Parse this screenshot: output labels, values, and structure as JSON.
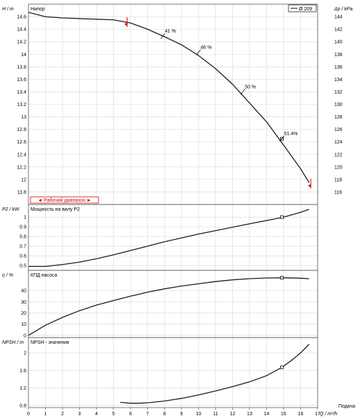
{
  "chart_data": [
    {
      "type": "line",
      "panel": "head",
      "title": "Напор",
      "ylabel": "H / m",
      "ylabel_right": "Δp / kPa",
      "legend": "Ø 209",
      "legend_position": "top-right",
      "grid": true,
      "xlim": [
        0,
        17
      ],
      "ylim": [
        11.6,
        14.8
      ],
      "yticks": [
        11.8,
        12,
        12.2,
        12.4,
        12.6,
        12.8,
        13,
        13.2,
        13.4,
        13.6,
        13.8,
        14,
        14.2,
        14.4,
        14.6
      ],
      "yticks_right": [
        116,
        118,
        120,
        122,
        124,
        126,
        128,
        130,
        132,
        134,
        136,
        138,
        140,
        142,
        144
      ],
      "series": [
        {
          "name": "Ø 209",
          "x": [
            0,
            1,
            2,
            3,
            4,
            5,
            6,
            7,
            8,
            9,
            10,
            11,
            12,
            13,
            14,
            15,
            15.5,
            16,
            16.5
          ],
          "y": [
            14.67,
            14.6,
            14.58,
            14.57,
            14.56,
            14.55,
            14.5,
            14.4,
            14.28,
            14.15,
            13.98,
            13.77,
            13.52,
            13.22,
            12.92,
            12.55,
            12.36,
            12.17,
            11.95
          ]
        }
      ],
      "efficiency_marks": [
        {
          "label": "41 %",
          "x": 7.9,
          "y": 14.29
        },
        {
          "label": "46 %",
          "x": 10.0,
          "y": 14.03
        },
        {
          "label": "50 %",
          "x": 12.6,
          "y": 13.4
        },
        {
          "label": "51.4%",
          "x": 14.9,
          "y": 12.65
        }
      ],
      "operating_point": {
        "x": 14.9,
        "y": 12.65
      },
      "range_label": "◄ Рабочий диапазон ►",
      "range_limits": [
        {
          "x": 5.8,
          "y": 14.48
        },
        {
          "x": 16.6,
          "y": 11.9
        }
      ]
    },
    {
      "type": "line",
      "panel": "power",
      "title": "Мощность на валу P2",
      "ylabel": "P2 / kW",
      "grid": true,
      "xlim": [
        0,
        17
      ],
      "ylim": [
        0.45,
        1.13
      ],
      "yticks": [
        0.5,
        0.6,
        0.7,
        0.8,
        0.9,
        1
      ],
      "series": [
        {
          "name": "",
          "x": [
            0,
            1,
            2,
            3,
            4,
            5,
            6,
            7,
            8,
            9,
            10,
            11,
            12,
            13,
            14,
            15,
            16,
            16.5
          ],
          "y": [
            0.49,
            0.49,
            0.51,
            0.535,
            0.57,
            0.61,
            0.655,
            0.7,
            0.745,
            0.785,
            0.825,
            0.86,
            0.895,
            0.93,
            0.965,
            1.0,
            1.05,
            1.08
          ]
        }
      ],
      "operating_point": {
        "x": 14.9,
        "y": 1.0
      }
    },
    {
      "type": "line",
      "panel": "efficiency",
      "title": "КПД насоса",
      "ylabel": "η / %",
      "grid": true,
      "xlim": [
        0,
        17
      ],
      "ylim": [
        -2,
        58
      ],
      "yticks": [
        0,
        10,
        20,
        30,
        40
      ],
      "series": [
        {
          "name": "",
          "x": [
            0,
            1,
            2,
            3,
            4,
            5,
            6,
            7,
            8,
            9,
            10,
            11,
            12,
            13,
            14,
            15,
            16,
            16.5
          ],
          "y": [
            0,
            9,
            16,
            22,
            27,
            31,
            35,
            38.5,
            41.5,
            44,
            46,
            48,
            49.5,
            50.6,
            51.2,
            51.4,
            51,
            50.5
          ]
        }
      ],
      "operating_point": {
        "x": 14.9,
        "y": 51.4
      }
    },
    {
      "type": "line",
      "panel": "npsh",
      "title": "NPSH - значения",
      "ylabel": "NPSH / m",
      "xlabel": "Q / m³/h",
      "xlabel_right": "Подача",
      "grid": true,
      "xlim": [
        0,
        17
      ],
      "xticks": [
        0,
        1,
        2,
        3,
        4,
        5,
        6,
        7,
        8,
        9,
        10,
        11,
        12,
        13,
        14,
        15,
        16,
        17
      ],
      "ylim": [
        0.75,
        2.35
      ],
      "yticks": [
        0.8,
        1.2,
        1.6,
        2
      ],
      "series": [
        {
          "name": "",
          "x": [
            5.4,
            6,
            6.5,
            7,
            8,
            9,
            10,
            11,
            12,
            13,
            14,
            14.9,
            15.5,
            16,
            16.5
          ],
          "y": [
            0.87,
            0.85,
            0.85,
            0.86,
            0.9,
            0.96,
            1.04,
            1.13,
            1.23,
            1.34,
            1.48,
            1.67,
            1.84,
            2.0,
            2.2
          ]
        }
      ],
      "operating_point": {
        "x": 14.9,
        "y": 1.67
      }
    }
  ]
}
